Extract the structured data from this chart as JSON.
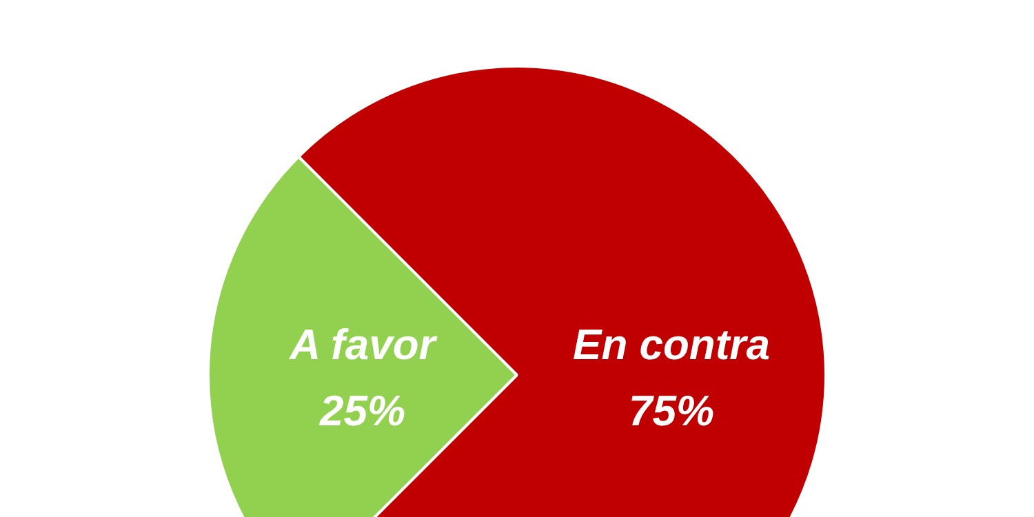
{
  "chart_data": {
    "type": "pie",
    "categories": [
      "A favor",
      "En contra"
    ],
    "values": [
      25,
      75
    ],
    "colors": [
      "#92d050",
      "#c00000"
    ],
    "value_labels": [
      "25%",
      "75%"
    ],
    "legend": false
  }
}
